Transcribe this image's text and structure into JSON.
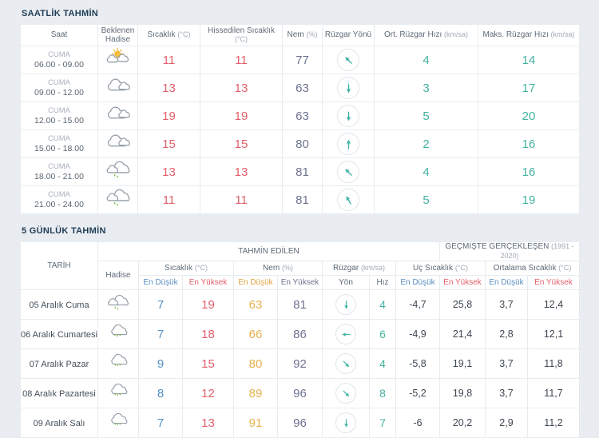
{
  "colors": {
    "page_bg": "#e9edf1",
    "table_bg": "#ffffff",
    "border": "#e7ecf1",
    "title": "#1f3c55",
    "header_text": "#5d6a77",
    "temp_red": "#e25f6b",
    "humidity_slate": "#6e7290",
    "wind_teal": "#45b3a0",
    "low_blue": "#5590c5",
    "humidity_low_orange": "#e6b14e",
    "historic_dark": "#3e4751"
  },
  "hourly": {
    "title": "SAATLİK TAHMİN",
    "columns": [
      {
        "label": "Saat",
        "unit": ""
      },
      {
        "label": "Beklenen Hadise",
        "unit": ""
      },
      {
        "label": "Sıcaklık",
        "unit": "(°C)"
      },
      {
        "label": "Hissedilen Sıcaklık",
        "unit": "(°C)"
      },
      {
        "label": "Nem",
        "unit": "(%)"
      },
      {
        "label": "Rüzgar Yönü",
        "unit": ""
      },
      {
        "label": "Ort. Rüzgar Hızı",
        "unit": "(km/sa)"
      },
      {
        "label": "Maks. Rüzgar Hızı",
        "unit": "(km/sa)"
      }
    ],
    "rows": [
      {
        "day": "CUMA",
        "time": "06.00 - 09.00",
        "icon": "sun-clouds",
        "temp": "11",
        "feels": "11",
        "humidity": "77",
        "wind_dir_deg": 315,
        "wind_avg": "4",
        "wind_max": "14"
      },
      {
        "day": "CUMA",
        "time": "09.00 - 12.00",
        "icon": "clouds",
        "temp": "13",
        "feels": "13",
        "humidity": "63",
        "wind_dir_deg": 180,
        "wind_avg": "3",
        "wind_max": "17"
      },
      {
        "day": "CUMA",
        "time": "12.00 - 15.00",
        "icon": "clouds",
        "temp": "19",
        "feels": "19",
        "humidity": "63",
        "wind_dir_deg": 180,
        "wind_avg": "5",
        "wind_max": "20"
      },
      {
        "day": "CUMA",
        "time": "15.00 - 18.00",
        "icon": "clouds",
        "temp": "15",
        "feels": "15",
        "humidity": "80",
        "wind_dir_deg": 0,
        "wind_avg": "2",
        "wind_max": "16"
      },
      {
        "day": "CUMA",
        "time": "18.00 - 21.00",
        "icon": "clouds-light-rain",
        "temp": "13",
        "feels": "13",
        "humidity": "81",
        "wind_dir_deg": 315,
        "wind_avg": "4",
        "wind_max": "16"
      },
      {
        "day": "CUMA",
        "time": "21.00 - 24.00",
        "icon": "clouds-light-rain",
        "temp": "11",
        "feels": "11",
        "humidity": "81",
        "wind_dir_deg": 330,
        "wind_avg": "5",
        "wind_max": "19"
      }
    ]
  },
  "daily": {
    "title": "5 GÜNLÜK TAHMİN",
    "header": {
      "date": "TARİH",
      "predicted": "TAHMİN EDİLEN",
      "past": "GEÇMİŞTE GERÇEKLEŞEN",
      "past_range": "(1991 - 2020)",
      "event": "Hadise",
      "groups": {
        "temp": {
          "label": "Sıcaklık",
          "unit": "(°C)"
        },
        "humidity": {
          "label": "Nem",
          "unit": "(%)"
        },
        "wind": {
          "label": "Rüzgar",
          "unit": "(km/sa)"
        },
        "extreme": {
          "label": "Uç Sıcaklık",
          "unit": "(°C)"
        },
        "average": {
          "label": "Ortalama Sıcaklık",
          "unit": "(°C)"
        }
      },
      "sub": {
        "low": "En Düşük",
        "high": "En Yüksek",
        "dir": "Yön",
        "speed": "Hız"
      }
    },
    "rows": [
      {
        "date": "05 Aralık Cuma",
        "icon": "clouds-light-rain",
        "tmin": "7",
        "tmax": "19",
        "hmin": "63",
        "hmax": "81",
        "wind_dir_deg": 180,
        "wind_speed": "4",
        "ext_min": "-4,7",
        "ext_max": "25,8",
        "avg_min": "3,7",
        "avg_max": "12,4"
      },
      {
        "date": "06 Aralık Cumartesi",
        "icon": "cloud-rain",
        "tmin": "7",
        "tmax": "18",
        "hmin": "66",
        "hmax": "86",
        "wind_dir_deg": 270,
        "wind_speed": "6",
        "ext_min": "-4,9",
        "ext_max": "21,4",
        "avg_min": "2,8",
        "avg_max": "12,1"
      },
      {
        "date": "07 Aralık Pazar",
        "icon": "cloud-rain",
        "tmin": "9",
        "tmax": "15",
        "hmin": "80",
        "hmax": "92",
        "wind_dir_deg": 135,
        "wind_speed": "4",
        "ext_min": "-5,8",
        "ext_max": "19,1",
        "avg_min": "3,7",
        "avg_max": "11,8"
      },
      {
        "date": "08 Aralık Pazartesi",
        "icon": "cloud-rain",
        "tmin": "8",
        "tmax": "12",
        "hmin": "89",
        "hmax": "96",
        "wind_dir_deg": 135,
        "wind_speed": "8",
        "ext_min": "-5,2",
        "ext_max": "19,8",
        "avg_min": "3,7",
        "avg_max": "11,7"
      },
      {
        "date": "09 Aralık Salı",
        "icon": "cloud-rain",
        "tmin": "7",
        "tmax": "13",
        "hmin": "91",
        "hmax": "96",
        "wind_dir_deg": 180,
        "wind_speed": "7",
        "ext_min": "-6",
        "ext_max": "20,2",
        "avg_min": "2,9",
        "avg_max": "11,2"
      }
    ]
  }
}
